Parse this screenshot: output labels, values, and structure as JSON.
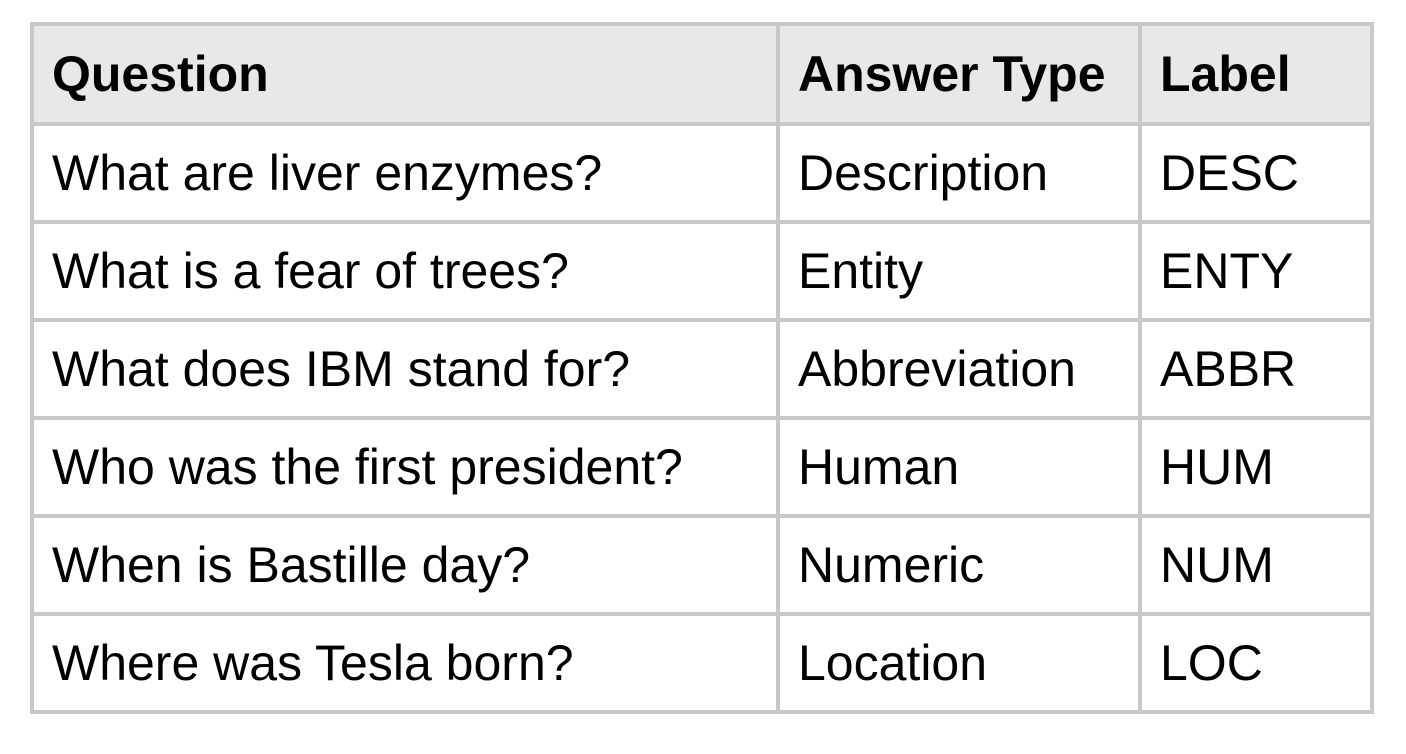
{
  "table": {
    "headers": [
      "Question",
      "Answer Type",
      "Label"
    ],
    "rows": [
      [
        "What are liver enzymes?",
        "Description",
        "DESC"
      ],
      [
        "What is a fear of trees?",
        "Entity",
        "ENTY"
      ],
      [
        "What does IBM stand for?",
        "Abbreviation",
        "ABBR"
      ],
      [
        "Who was the first president?",
        "Human",
        "HUM"
      ],
      [
        "When is Bastille day?",
        "Numeric",
        "NUM"
      ],
      [
        "Where was Tesla born?",
        "Location",
        "LOC"
      ]
    ],
    "colors": {
      "header_background": "#e8e8e8",
      "border": "#c8c8c8",
      "text": "#000000"
    }
  }
}
